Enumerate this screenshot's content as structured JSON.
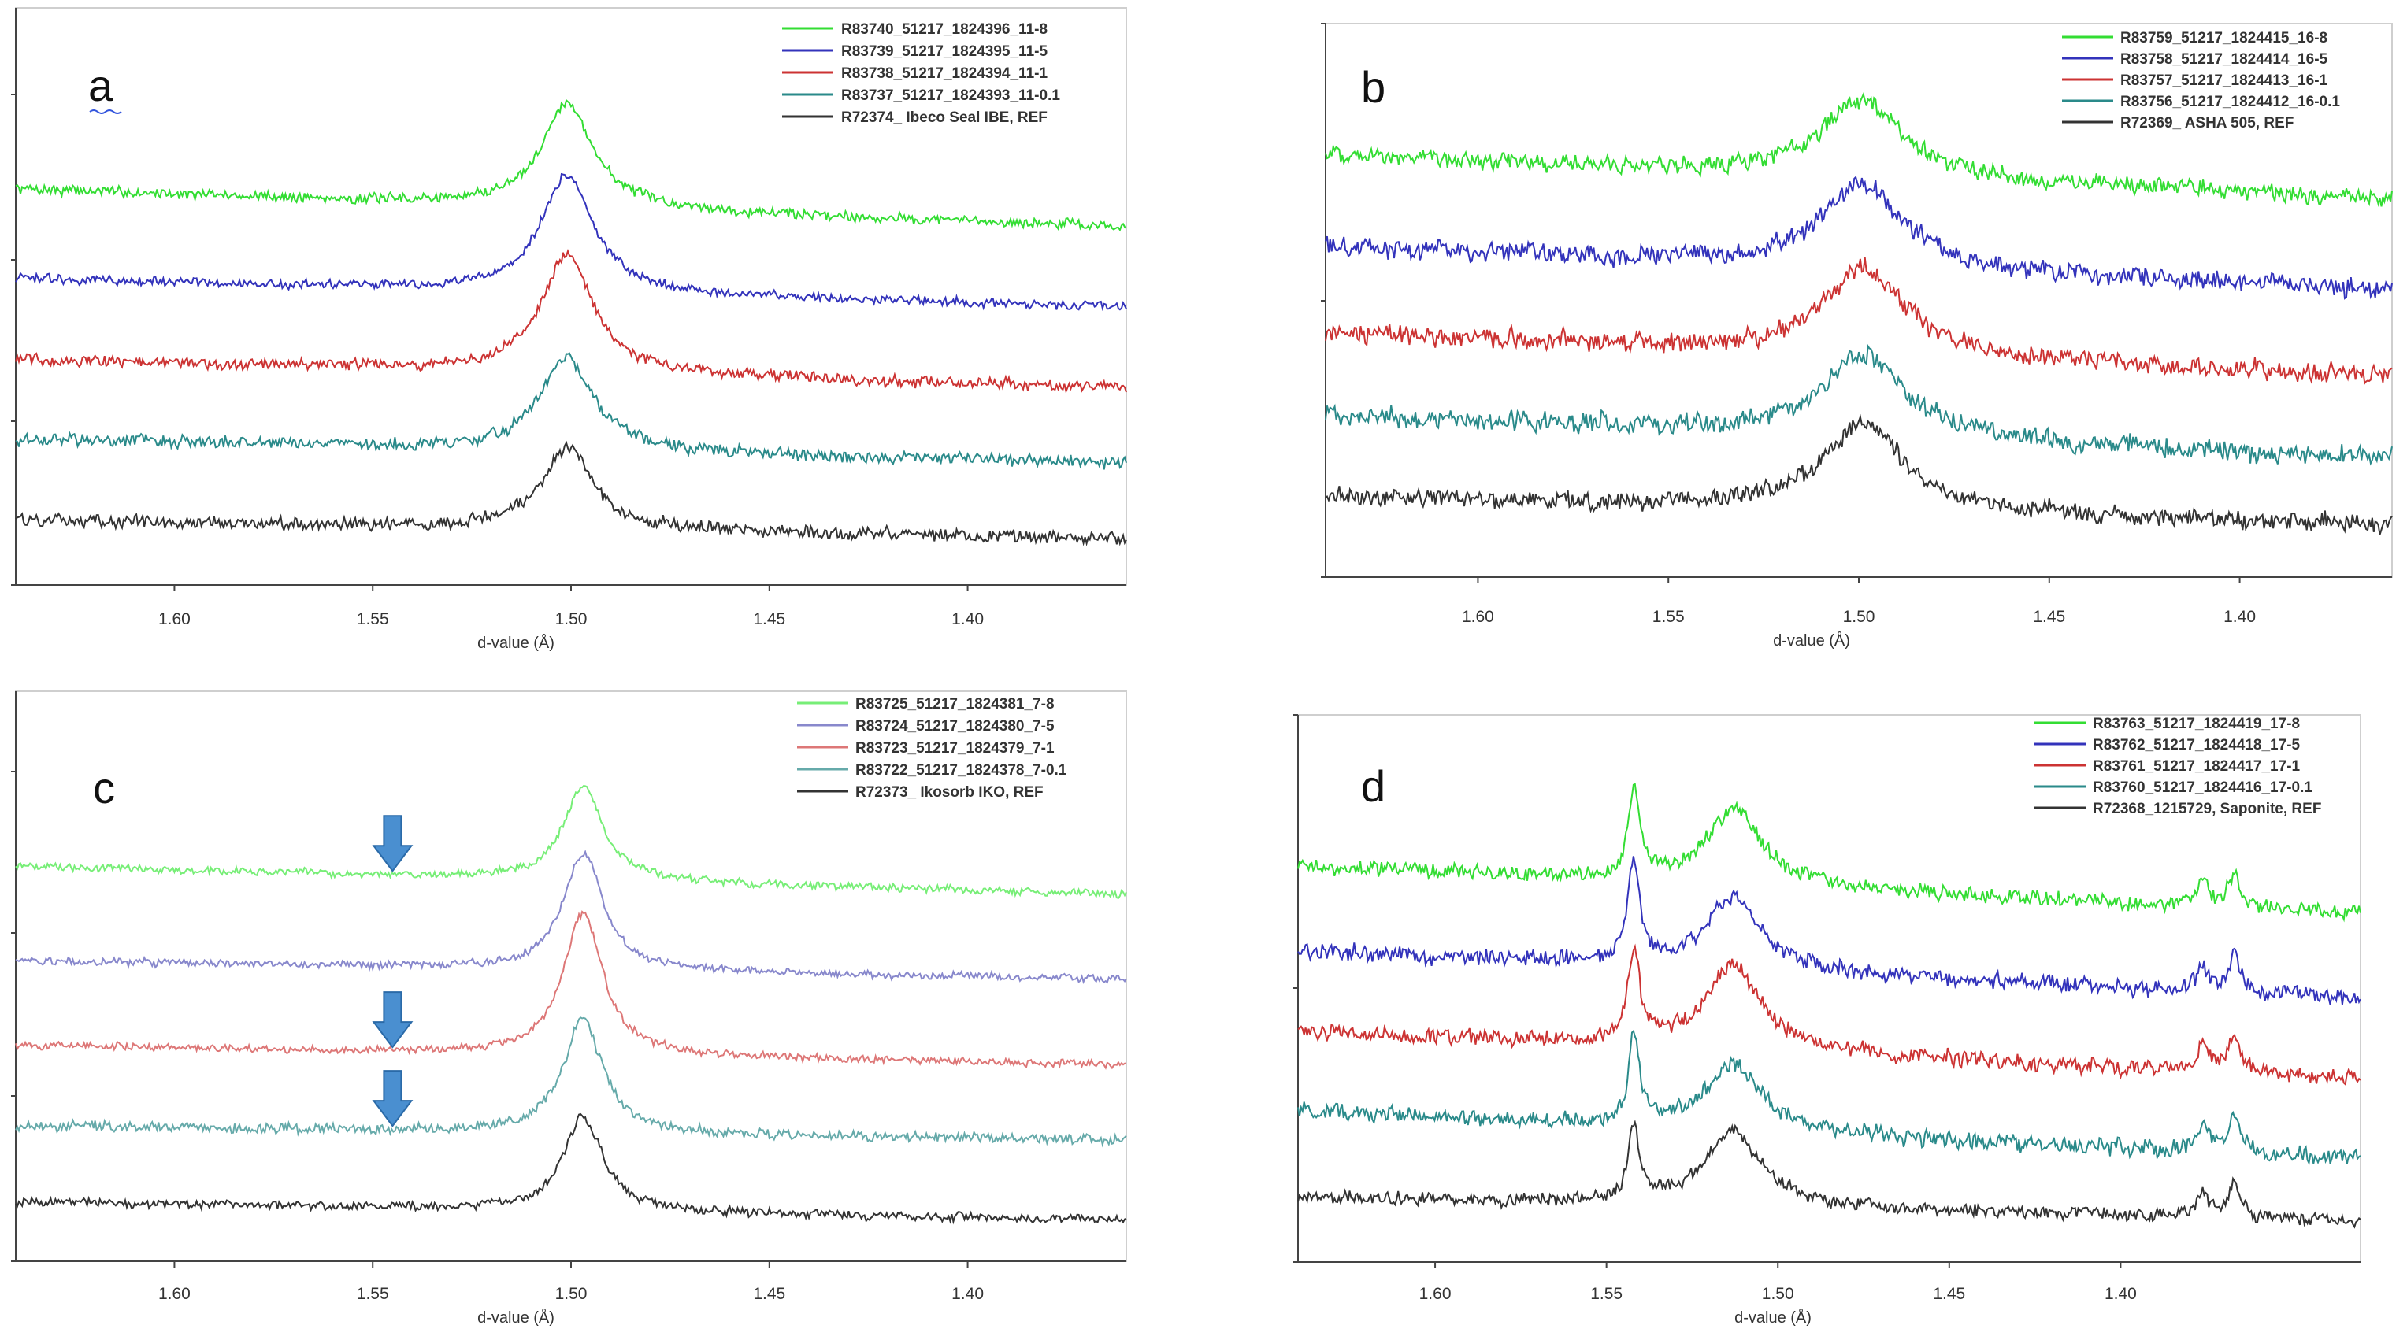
{
  "chart_data": [
    {
      "type": "line",
      "panel_label": "a",
      "xlabel": "d-value (Å)",
      "xlim": [
        1.64,
        1.36
      ],
      "x_ticks": [
        "1.60",
        "1.55",
        "1.50",
        "1.45",
        "1.40"
      ],
      "x_tick_values": [
        1.6,
        1.55,
        1.5,
        1.45,
        1.4
      ],
      "ylim": [
        0,
        100
      ],
      "peaks": [
        {
          "d": 1.501,
          "width": 0.008
        }
      ],
      "series": [
        {
          "name": "R83740_51217_1824396_11-8",
          "color": "#33dd33",
          "baseline": 80,
          "end": 72,
          "amps": [
            22
          ],
          "noise": 0.8
        },
        {
          "name": "R83739_51217_1824395_11-5",
          "color": "#3333bb",
          "baseline": 61,
          "end": 55,
          "amps": [
            25
          ],
          "noise": 0.7
        },
        {
          "name": "R83738_51217_1824394_11-1",
          "color": "#cc3333",
          "baseline": 44,
          "end": 38,
          "amps": [
            25
          ],
          "noise": 0.9
        },
        {
          "name": "R83737_51217_1824393_11-0.1",
          "color": "#2a8a8a",
          "baseline": 27,
          "end": 22,
          "amps": [
            20
          ],
          "noise": 1.0
        },
        {
          "name": "R72374_ Ibeco Seal IBE, REF",
          "color": "#333333",
          "baseline": 10,
          "end": 6,
          "amps": [
            17
          ],
          "noise": 1.0
        }
      ]
    },
    {
      "type": "line",
      "panel_label": "b",
      "xlabel": "d-value (Å)",
      "xlim": [
        1.64,
        1.36
      ],
      "x_ticks": [
        "1.60",
        "1.55",
        "1.50",
        "1.45",
        "1.40"
      ],
      "x_tick_values": [
        1.6,
        1.55,
        1.5,
        1.45,
        1.4
      ],
      "ylim": [
        0,
        100
      ],
      "peaks": [
        {
          "d": 1.499,
          "width": 0.013
        }
      ],
      "series": [
        {
          "name": "R83759_51217_1824415_16-8",
          "color": "#33dd33",
          "baseline": 84,
          "end": 75,
          "amps": [
            16
          ],
          "noise": 1.4
        },
        {
          "name": "R83758_51217_1824414_16-5",
          "color": "#3333bb",
          "baseline": 65,
          "end": 56,
          "amps": [
            18
          ],
          "noise": 1.5
        },
        {
          "name": "R83757_51217_1824413_16-1",
          "color": "#cc3333",
          "baseline": 47,
          "end": 38,
          "amps": [
            18
          ],
          "noise": 1.5
        },
        {
          "name": "R83756_51217_1824412_16-0.1",
          "color": "#2a8a8a",
          "baseline": 30,
          "end": 21,
          "amps": [
            17
          ],
          "noise": 1.6
        },
        {
          "name": "R72369_ ASHA 505, REF",
          "color": "#333333",
          "baseline": 13,
          "end": 7,
          "amps": [
            18
          ],
          "noise": 1.4
        }
      ]
    },
    {
      "type": "line",
      "panel_label": "c",
      "xlabel": "d-value (Å)",
      "xlim": [
        1.64,
        1.36
      ],
      "x_ticks": [
        "1.60",
        "1.55",
        "1.50",
        "1.45",
        "1.40"
      ],
      "x_tick_values": [
        1.6,
        1.55,
        1.5,
        1.45,
        1.4
      ],
      "ylim": [
        0,
        100
      ],
      "peaks": [
        {
          "d": 1.497,
          "width": 0.006
        }
      ],
      "series": [
        {
          "name": "R83725_51217_1824381_7-8",
          "color": "#77ee77",
          "baseline": 80,
          "end": 74,
          "amps": [
            20
          ],
          "noise": 0.6
        },
        {
          "name": "R83724_51217_1824380_7-5",
          "color": "#8888cc",
          "baseline": 60,
          "end": 56,
          "amps": [
            25
          ],
          "noise": 0.6
        },
        {
          "name": "R83723_51217_1824379_7-1",
          "color": "#dd7777",
          "baseline": 42,
          "end": 38,
          "amps": [
            30
          ],
          "noise": 0.6
        },
        {
          "name": "R83722_51217_1824378_7-0.1",
          "color": "#66aaaa",
          "baseline": 25,
          "end": 22,
          "amps": [
            24
          ],
          "noise": 0.8
        },
        {
          "name": "R72373_ Ikosorb IKO, REF",
          "color": "#333333",
          "baseline": 9,
          "end": 5,
          "amps": [
            20
          ],
          "noise": 0.7
        }
      ],
      "annotations": [
        {
          "type": "arrow",
          "d": 1.545,
          "series_index": 0
        },
        {
          "type": "arrow",
          "d": 1.545,
          "series_index": 2
        },
        {
          "type": "arrow",
          "d": 1.545,
          "series_index": 3
        }
      ]
    },
    {
      "type": "line",
      "panel_label": "d",
      "xlabel": "d-value (Å)",
      "xlim": [
        1.64,
        1.33
      ],
      "x_ticks": [
        "1.60",
        "1.55",
        "1.50",
        "1.45",
        "1.40"
      ],
      "x_tick_values": [
        1.6,
        1.55,
        1.5,
        1.45,
        1.4
      ],
      "ylim": [
        0,
        100
      ],
      "peaks": [
        {
          "d": 1.542,
          "width": 0.002
        },
        {
          "d": 1.513,
          "width": 0.01
        },
        {
          "d": 1.376,
          "width": 0.002
        },
        {
          "d": 1.367,
          "width": 0.002
        }
      ],
      "series": [
        {
          "name": "R83763_51217_1824419_17-8",
          "color": "#33dd33",
          "baseline": 80,
          "end": 70,
          "amps": [
            18,
            16,
            5,
            7
          ],
          "noise": 1.2
        },
        {
          "name": "R83762_51217_1824418_17-5",
          "color": "#3333bb",
          "baseline": 62,
          "end": 52,
          "amps": [
            22,
            15,
            5,
            8
          ],
          "noise": 1.3
        },
        {
          "name": "R83761_51217_1824417_17-1",
          "color": "#cc3333",
          "baseline": 45,
          "end": 35,
          "amps": [
            20,
            18,
            6,
            8
          ],
          "noise": 1.3
        },
        {
          "name": "R83760_51217_1824416_17-0.1",
          "color": "#2a8a8a",
          "baseline": 28,
          "end": 18,
          "amps": [
            18,
            14,
            6,
            8
          ],
          "noise": 1.3
        },
        {
          "name": "R72368_1215729, Saponite, REF",
          "color": "#333333",
          "baseline": 10,
          "end": 5,
          "amps": [
            15,
            16,
            5,
            7
          ],
          "noise": 1.0
        }
      ]
    }
  ]
}
